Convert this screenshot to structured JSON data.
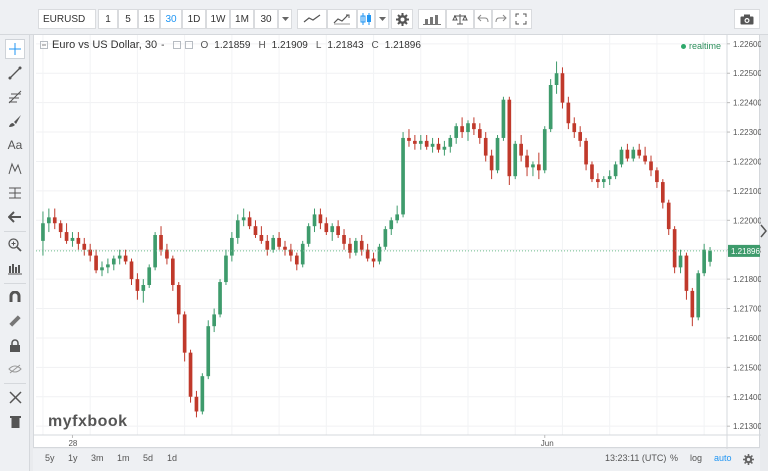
{
  "toolbar": {
    "symbol": "EURUSD",
    "intervals": [
      "1",
      "5",
      "15",
      "30",
      "1D",
      "1W",
      "1M",
      "30"
    ],
    "active_interval": "30",
    "icons": [
      "line-chart-icon",
      "indicator-chart-icon",
      "candlestick-icon",
      "dropdown-icon",
      "gear-icon",
      "compare-icon",
      "scales-icon",
      "undo-icon",
      "redo-icon",
      "fullscreen-icon",
      "camera-icon"
    ]
  },
  "left_tools": [
    "crosshair-icon",
    "trend-line-icon",
    "fib-icon",
    "brush-icon",
    "text-icon",
    "pattern-icon",
    "measure-icon",
    "arrow-left-icon",
    "zoom-in-icon",
    "bars-icon",
    "magnet-icon",
    "ruler-icon",
    "lock-icon",
    "eye-hide-icon",
    "remove-tools-icon",
    "trash-icon"
  ],
  "legend": {
    "title": "Euro vs US Dollar, 30",
    "dash": "-",
    "o_label": "O",
    "o_value": "1.21859",
    "h_label": "H",
    "h_value": "1.21909",
    "l_label": "L",
    "l_value": "1.21843",
    "c_label": "C",
    "c_value": "1.21896"
  },
  "realtime_label": "realtime",
  "watermark": "myfxbook",
  "current_price_label": "1.21896",
  "bottom": {
    "ranges": [
      "5y",
      "1y",
      "3m",
      "1m",
      "5d",
      "1d"
    ],
    "time": "13:23:11 (UTC)",
    "percent": "%",
    "log": "log",
    "auto": "auto"
  },
  "colors": {
    "up": "#3e9b6c",
    "down": "#c0392b",
    "accent": "#2196f3",
    "price_line": "#6fbf8f"
  },
  "chart_data": {
    "type": "candlestick",
    "title": "Euro vs US Dollar, 30",
    "y_ticks": [
      "1.22600",
      "1.22500",
      "1.22400",
      "1.22300",
      "1.22200",
      "1.22100",
      "1.22000",
      "1.21900",
      "1.21800",
      "1.21700",
      "1.21600",
      "1.21500",
      "1.21400",
      "1.21300"
    ],
    "ylim": [
      1.2127,
      1.2263
    ],
    "x_ticks": [
      "28",
      "Jun"
    ],
    "current_price": 1.21896,
    "ohlc": [
      [
        1.2193,
        1.2203,
        1.2188,
        1.2199
      ],
      [
        1.2199,
        1.2204,
        1.2196,
        1.2201
      ],
      [
        1.2201,
        1.2204,
        1.2197,
        1.2199
      ],
      [
        1.2199,
        1.22,
        1.2194,
        1.2196
      ],
      [
        1.2196,
        1.2199,
        1.2192,
        1.2193
      ],
      [
        1.2193,
        1.2196,
        1.2191,
        1.2194
      ],
      [
        1.2194,
        1.2196,
        1.219,
        1.2192
      ],
      [
        1.2192,
        1.2194,
        1.2188,
        1.219
      ],
      [
        1.219,
        1.2192,
        1.2186,
        1.2188
      ],
      [
        1.2188,
        1.219,
        1.2182,
        1.2183
      ],
      [
        1.2183,
        1.2186,
        1.2181,
        1.2184
      ],
      [
        1.2184,
        1.2187,
        1.2182,
        1.2185
      ],
      [
        1.2185,
        1.2188,
        1.2183,
        1.2187
      ],
      [
        1.2187,
        1.219,
        1.2185,
        1.2188
      ],
      [
        1.2188,
        1.219,
        1.2185,
        1.2186
      ],
      [
        1.2186,
        1.2187,
        1.2178,
        1.218
      ],
      [
        1.218,
        1.2182,
        1.2173,
        1.2176
      ],
      [
        1.2176,
        1.218,
        1.2172,
        1.2178
      ],
      [
        1.2178,
        1.2185,
        1.2177,
        1.2184
      ],
      [
        1.2184,
        1.2196,
        1.2183,
        1.2195
      ],
      [
        1.2195,
        1.2198,
        1.2188,
        1.219
      ],
      [
        1.219,
        1.2192,
        1.2185,
        1.2187
      ],
      [
        1.2187,
        1.2188,
        1.2176,
        1.2178
      ],
      [
        1.2178,
        1.2179,
        1.2165,
        1.2168
      ],
      [
        1.2168,
        1.2169,
        1.2152,
        1.2155
      ],
      [
        1.2155,
        1.2156,
        1.2138,
        1.214
      ],
      [
        1.214,
        1.2142,
        1.2133,
        1.2135
      ],
      [
        1.2135,
        1.2148,
        1.2134,
        1.2147
      ],
      [
        1.2147,
        1.2166,
        1.2146,
        1.2164
      ],
      [
        1.2164,
        1.217,
        1.2162,
        1.2168
      ],
      [
        1.2168,
        1.218,
        1.2167,
        1.2179
      ],
      [
        1.2179,
        1.219,
        1.2178,
        1.2188
      ],
      [
        1.2188,
        1.2196,
        1.2186,
        1.2194
      ],
      [
        1.2194,
        1.2202,
        1.2192,
        1.22
      ],
      [
        1.22,
        1.2204,
        1.2198,
        1.2201
      ],
      [
        1.2201,
        1.2203,
        1.2197,
        1.2198
      ],
      [
        1.2198,
        1.22,
        1.2194,
        1.2195
      ],
      [
        1.2195,
        1.2198,
        1.2192,
        1.2193
      ],
      [
        1.2193,
        1.2195,
        1.2188,
        1.219
      ],
      [
        1.219,
        1.2195,
        1.2189,
        1.2194
      ],
      [
        1.2194,
        1.2196,
        1.219,
        1.2191
      ],
      [
        1.2191,
        1.2193,
        1.2188,
        1.219
      ],
      [
        1.219,
        1.2192,
        1.2186,
        1.2188
      ],
      [
        1.2188,
        1.2189,
        1.2183,
        1.2185
      ],
      [
        1.2185,
        1.2193,
        1.2184,
        1.2192
      ],
      [
        1.2192,
        1.2199,
        1.2191,
        1.2198
      ],
      [
        1.2198,
        1.2204,
        1.2196,
        1.2202
      ],
      [
        1.2202,
        1.2204,
        1.2197,
        1.2199
      ],
      [
        1.2199,
        1.2201,
        1.2195,
        1.2196
      ],
      [
        1.2196,
        1.2199,
        1.2193,
        1.2198
      ],
      [
        1.2198,
        1.22,
        1.2194,
        1.2195
      ],
      [
        1.2195,
        1.2197,
        1.219,
        1.2192
      ],
      [
        1.2192,
        1.2194,
        1.2187,
        1.2189
      ],
      [
        1.2189,
        1.2194,
        1.2188,
        1.2193
      ],
      [
        1.2193,
        1.2195,
        1.2188,
        1.219
      ],
      [
        1.219,
        1.2192,
        1.2186,
        1.2187
      ],
      [
        1.2187,
        1.2189,
        1.2184,
        1.2186
      ],
      [
        1.2186,
        1.2192,
        1.2185,
        1.2191
      ],
      [
        1.2191,
        1.2198,
        1.219,
        1.2197
      ],
      [
        1.2197,
        1.2201,
        1.2195,
        1.22
      ],
      [
        1.22,
        1.2205,
        1.2199,
        1.2202
      ],
      [
        1.2202,
        1.223,
        1.2201,
        1.2228
      ],
      [
        1.2228,
        1.2231,
        1.2225,
        1.2227
      ],
      [
        1.2227,
        1.2229,
        1.2224,
        1.2226
      ],
      [
        1.2226,
        1.2229,
        1.2224,
        1.2227
      ],
      [
        1.2227,
        1.2229,
        1.2224,
        1.2225
      ],
      [
        1.2225,
        1.2228,
        1.2223,
        1.2226
      ],
      [
        1.2226,
        1.2228,
        1.2223,
        1.2224
      ],
      [
        1.2224,
        1.2227,
        1.2222,
        1.2225
      ],
      [
        1.2225,
        1.2229,
        1.2223,
        1.2228
      ],
      [
        1.2228,
        1.2233,
        1.2226,
        1.2232
      ],
      [
        1.2232,
        1.2235,
        1.2228,
        1.223
      ],
      [
        1.223,
        1.2234,
        1.2227,
        1.2233
      ],
      [
        1.2233,
        1.2235,
        1.2229,
        1.2231
      ],
      [
        1.2231,
        1.2233,
        1.2226,
        1.2228
      ],
      [
        1.2228,
        1.223,
        1.222,
        1.2222
      ],
      [
        1.2222,
        1.2224,
        1.2214,
        1.2217
      ],
      [
        1.2217,
        1.2229,
        1.2216,
        1.2228
      ],
      [
        1.2228,
        1.2242,
        1.2227,
        1.2241
      ],
      [
        1.2241,
        1.2242,
        1.2212,
        1.2215
      ],
      [
        1.2215,
        1.2227,
        1.2214,
        1.2226
      ],
      [
        1.2226,
        1.2229,
        1.222,
        1.2222
      ],
      [
        1.2222,
        1.2224,
        1.2215,
        1.2218
      ],
      [
        1.2218,
        1.222,
        1.2215,
        1.2219
      ],
      [
        1.2219,
        1.2223,
        1.2214,
        1.2217
      ],
      [
        1.2217,
        1.2232,
        1.2216,
        1.2231
      ],
      [
        1.2231,
        1.2248,
        1.223,
        1.2246
      ],
      [
        1.2246,
        1.2254,
        1.2243,
        1.225
      ],
      [
        1.225,
        1.2252,
        1.2238,
        1.224
      ],
      [
        1.224,
        1.2242,
        1.2231,
        1.2233
      ],
      [
        1.2233,
        1.2235,
        1.2228,
        1.223
      ],
      [
        1.223,
        1.2232,
        1.2225,
        1.2227
      ],
      [
        1.2227,
        1.2228,
        1.2217,
        1.2219
      ],
      [
        1.2219,
        1.222,
        1.2213,
        1.2214
      ],
      [
        1.2214,
        1.2216,
        1.2211,
        1.2213
      ],
      [
        1.2213,
        1.2215,
        1.2211,
        1.2214
      ],
      [
        1.2214,
        1.2217,
        1.2212,
        1.2215
      ],
      [
        1.2215,
        1.222,
        1.2214,
        1.2219
      ],
      [
        1.2219,
        1.2225,
        1.2218,
        1.2224
      ],
      [
        1.2224,
        1.2226,
        1.222,
        1.2221
      ],
      [
        1.2221,
        1.2225,
        1.222,
        1.2224
      ],
      [
        1.2224,
        1.2226,
        1.2221,
        1.2222
      ],
      [
        1.2222,
        1.2225,
        1.2219,
        1.222
      ],
      [
        1.222,
        1.2222,
        1.2215,
        1.2217
      ],
      [
        1.2217,
        1.2218,
        1.2211,
        1.2213
      ],
      [
        1.2213,
        1.2214,
        1.2204,
        1.2206
      ],
      [
        1.2206,
        1.2207,
        1.2195,
        1.2197
      ],
      [
        1.2197,
        1.2198,
        1.2182,
        1.2184
      ],
      [
        1.2184,
        1.219,
        1.2182,
        1.2188
      ],
      [
        1.2188,
        1.2189,
        1.2173,
        1.2176
      ],
      [
        1.2176,
        1.2177,
        1.2164,
        1.2167
      ],
      [
        1.2167,
        1.2183,
        1.2166,
        1.2182
      ],
      [
        1.2182,
        1.2192,
        1.2181,
        1.219
      ],
      [
        1.21859,
        1.21909,
        1.21843,
        1.21896
      ]
    ]
  }
}
